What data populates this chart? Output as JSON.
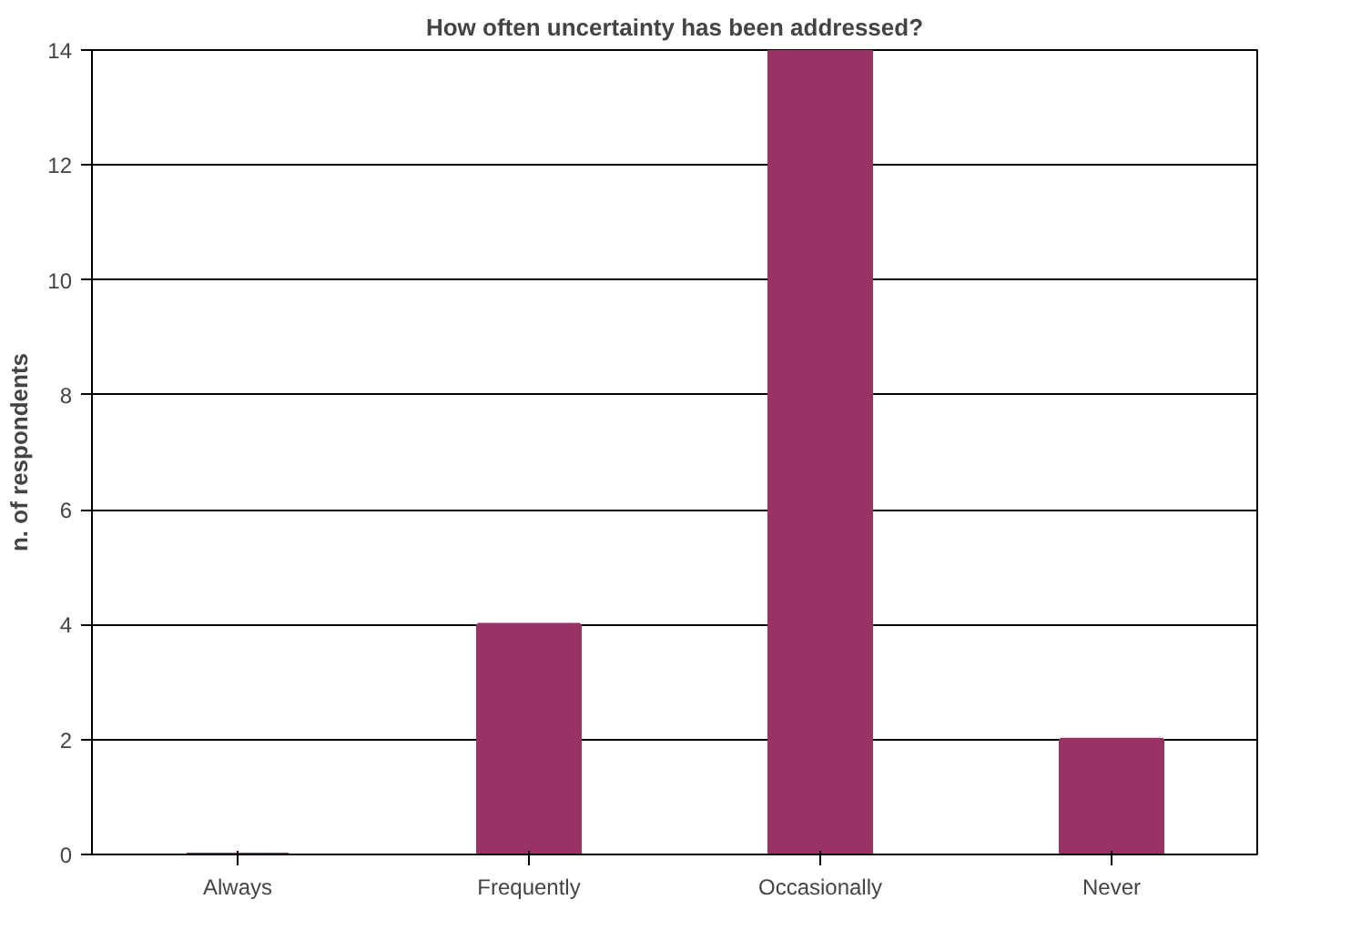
{
  "chart_data": {
    "type": "bar",
    "title": "How often uncertainty has been addressed?",
    "ylabel": "n. of respondents",
    "categories": [
      "Always",
      "Frequently",
      "Occasionally",
      "Never"
    ],
    "values": [
      0,
      4,
      14,
      2
    ],
    "color": "#993366",
    "ylim": [
      0,
      14
    ],
    "yticks": [
      0,
      2,
      4,
      6,
      8,
      10,
      12,
      14
    ],
    "grid": "y"
  }
}
